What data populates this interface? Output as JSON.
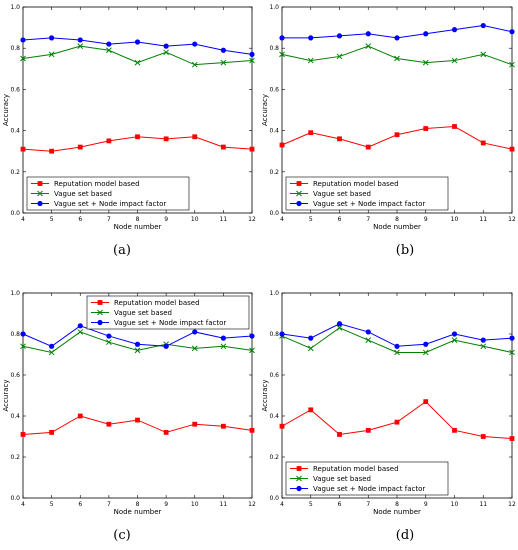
{
  "colors": {
    "reputation": "#ff0000",
    "vague": "#008000",
    "vague_nif": "#0000ff",
    "axis": "#000000"
  },
  "chart_data": [
    {
      "type": "line",
      "caption": "(a)",
      "xlabel": "Node number",
      "ylabel": "Accuracy",
      "x": [
        4,
        5,
        6,
        7,
        8,
        9,
        10,
        11,
        12
      ],
      "xlim": [
        4,
        12
      ],
      "ylim": [
        0,
        1.0
      ],
      "yticks": [
        "0.0",
        "0.2",
        "0.4",
        "0.6",
        "0.8",
        "1.0"
      ],
      "grid": false,
      "legend_position": "lower-left",
      "series": [
        {
          "name": "Reputation model based",
          "marker": "square",
          "values": [
            0.31,
            0.3,
            0.32,
            0.35,
            0.37,
            0.36,
            0.37,
            0.32,
            0.31
          ]
        },
        {
          "name": "Vague set based",
          "marker": "x",
          "values": [
            0.75,
            0.77,
            0.81,
            0.79,
            0.73,
            0.78,
            0.72,
            0.73,
            0.74
          ]
        },
        {
          "name": "Vague set + Node impact factor",
          "marker": "circle",
          "values": [
            0.84,
            0.85,
            0.84,
            0.82,
            0.83,
            0.81,
            0.82,
            0.79,
            0.77
          ]
        }
      ]
    },
    {
      "type": "line",
      "caption": "(b)",
      "xlabel": "Node number",
      "ylabel": "Accuracy",
      "x": [
        4,
        5,
        6,
        7,
        8,
        9,
        10,
        11,
        12
      ],
      "xlim": [
        4,
        12
      ],
      "ylim": [
        0,
        1.0
      ],
      "yticks": [
        "0.0",
        "0.2",
        "0.4",
        "0.6",
        "0.8",
        "1.0"
      ],
      "grid": false,
      "legend_position": "lower-left",
      "series": [
        {
          "name": "Reputation model based",
          "marker": "square",
          "values": [
            0.33,
            0.39,
            0.36,
            0.32,
            0.38,
            0.41,
            0.42,
            0.34,
            0.31
          ]
        },
        {
          "name": "Vague set based",
          "marker": "x",
          "values": [
            0.77,
            0.74,
            0.76,
            0.81,
            0.75,
            0.73,
            0.74,
            0.77,
            0.72
          ]
        },
        {
          "name": "Vague set + Node impact factor",
          "marker": "circle",
          "values": [
            0.85,
            0.85,
            0.86,
            0.87,
            0.85,
            0.87,
            0.89,
            0.91,
            0.88
          ]
        }
      ]
    },
    {
      "type": "line",
      "caption": "(c)",
      "xlabel": "Node number",
      "ylabel": "Accuracy",
      "x": [
        4,
        5,
        6,
        7,
        8,
        9,
        10,
        11,
        12
      ],
      "xlim": [
        4,
        12
      ],
      "ylim": [
        0,
        1.0
      ],
      "yticks": [
        "0.0",
        "0.2",
        "0.4",
        "0.6",
        "0.8",
        "1.0"
      ],
      "grid": false,
      "legend_position": "upper-center",
      "series": [
        {
          "name": "Reputation model based",
          "marker": "square",
          "values": [
            0.31,
            0.32,
            0.4,
            0.36,
            0.38,
            0.32,
            0.36,
            0.35,
            0.33
          ]
        },
        {
          "name": "Vague set based",
          "marker": "x",
          "values": [
            0.74,
            0.71,
            0.81,
            0.76,
            0.72,
            0.75,
            0.73,
            0.74,
            0.72
          ]
        },
        {
          "name": "Vague set + Node impact factor",
          "marker": "circle",
          "values": [
            0.8,
            0.74,
            0.84,
            0.79,
            0.75,
            0.74,
            0.81,
            0.78,
            0.79
          ]
        }
      ]
    },
    {
      "type": "line",
      "caption": "(d)",
      "xlabel": "Node number",
      "ylabel": "Accuracy",
      "x": [
        4,
        5,
        6,
        7,
        8,
        9,
        10,
        11,
        12
      ],
      "xlim": [
        4,
        12
      ],
      "ylim": [
        0,
        1.0
      ],
      "yticks": [
        "0.0",
        "0.2",
        "0.4",
        "0.6",
        "0.8",
        "1.0"
      ],
      "grid": false,
      "legend_position": "lower-left",
      "series": [
        {
          "name": "Reputation model based",
          "marker": "square",
          "values": [
            0.35,
            0.43,
            0.31,
            0.33,
            0.37,
            0.47,
            0.33,
            0.3,
            0.29
          ]
        },
        {
          "name": "Vague set based",
          "marker": "x",
          "values": [
            0.79,
            0.73,
            0.83,
            0.77,
            0.71,
            0.71,
            0.77,
            0.74,
            0.71
          ]
        },
        {
          "name": "Vague set + Node impact factor",
          "marker": "circle",
          "values": [
            0.8,
            0.78,
            0.85,
            0.81,
            0.74,
            0.75,
            0.8,
            0.77,
            0.78
          ]
        }
      ]
    }
  ]
}
